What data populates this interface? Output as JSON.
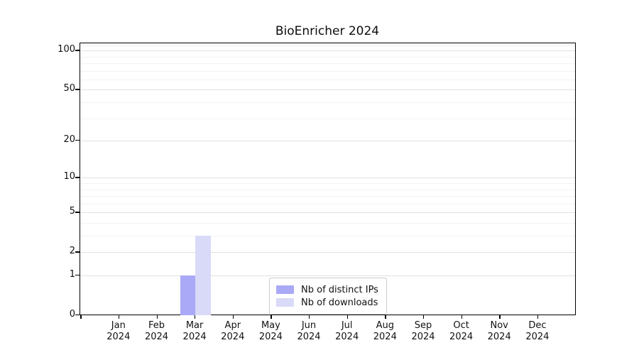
{
  "chart_data": {
    "type": "bar",
    "title": "BioEnricher 2024",
    "categories": [
      "Jan 2024",
      "Feb 2024",
      "Mar 2024",
      "Apr 2024",
      "May 2024",
      "Jun 2024",
      "Jul 2024",
      "Aug 2024",
      "Sep 2024",
      "Oct 2024",
      "Nov 2024",
      "Dec 2024"
    ],
    "series": [
      {
        "name": "Nb of distinct IPs",
        "color": "#a9a9f7",
        "values": [
          0,
          0,
          1,
          0,
          0,
          0,
          0,
          0,
          0,
          0,
          0,
          0
        ]
      },
      {
        "name": "Nb of downloads",
        "color": "#d9d9f8",
        "values": [
          0,
          0,
          3,
          0,
          0,
          0,
          0,
          0,
          0,
          0,
          0,
          0
        ]
      }
    ],
    "xlabel": "",
    "ylabel": "",
    "yscale": "log1p",
    "ylim": [
      0,
      115
    ],
    "y_major_ticks": [
      0,
      1,
      2,
      5,
      10,
      20,
      50,
      100
    ],
    "y_minor_ticks": [
      3,
      4,
      6,
      7,
      8,
      9,
      30,
      40,
      60,
      70,
      80,
      90,
      110
    ],
    "grid": "horizontal",
    "legend_position": "lower center inside"
  },
  "colors": {
    "background": "#ffffff",
    "spine": "#000000",
    "grid_major": "#e1e1e1",
    "grid_minor": "#f2f2f2",
    "text": "#111111",
    "legend_border": "#cccccc",
    "bar_distinct_ips": "#a9a9f7",
    "bar_downloads": "#d9d9f8"
  }
}
